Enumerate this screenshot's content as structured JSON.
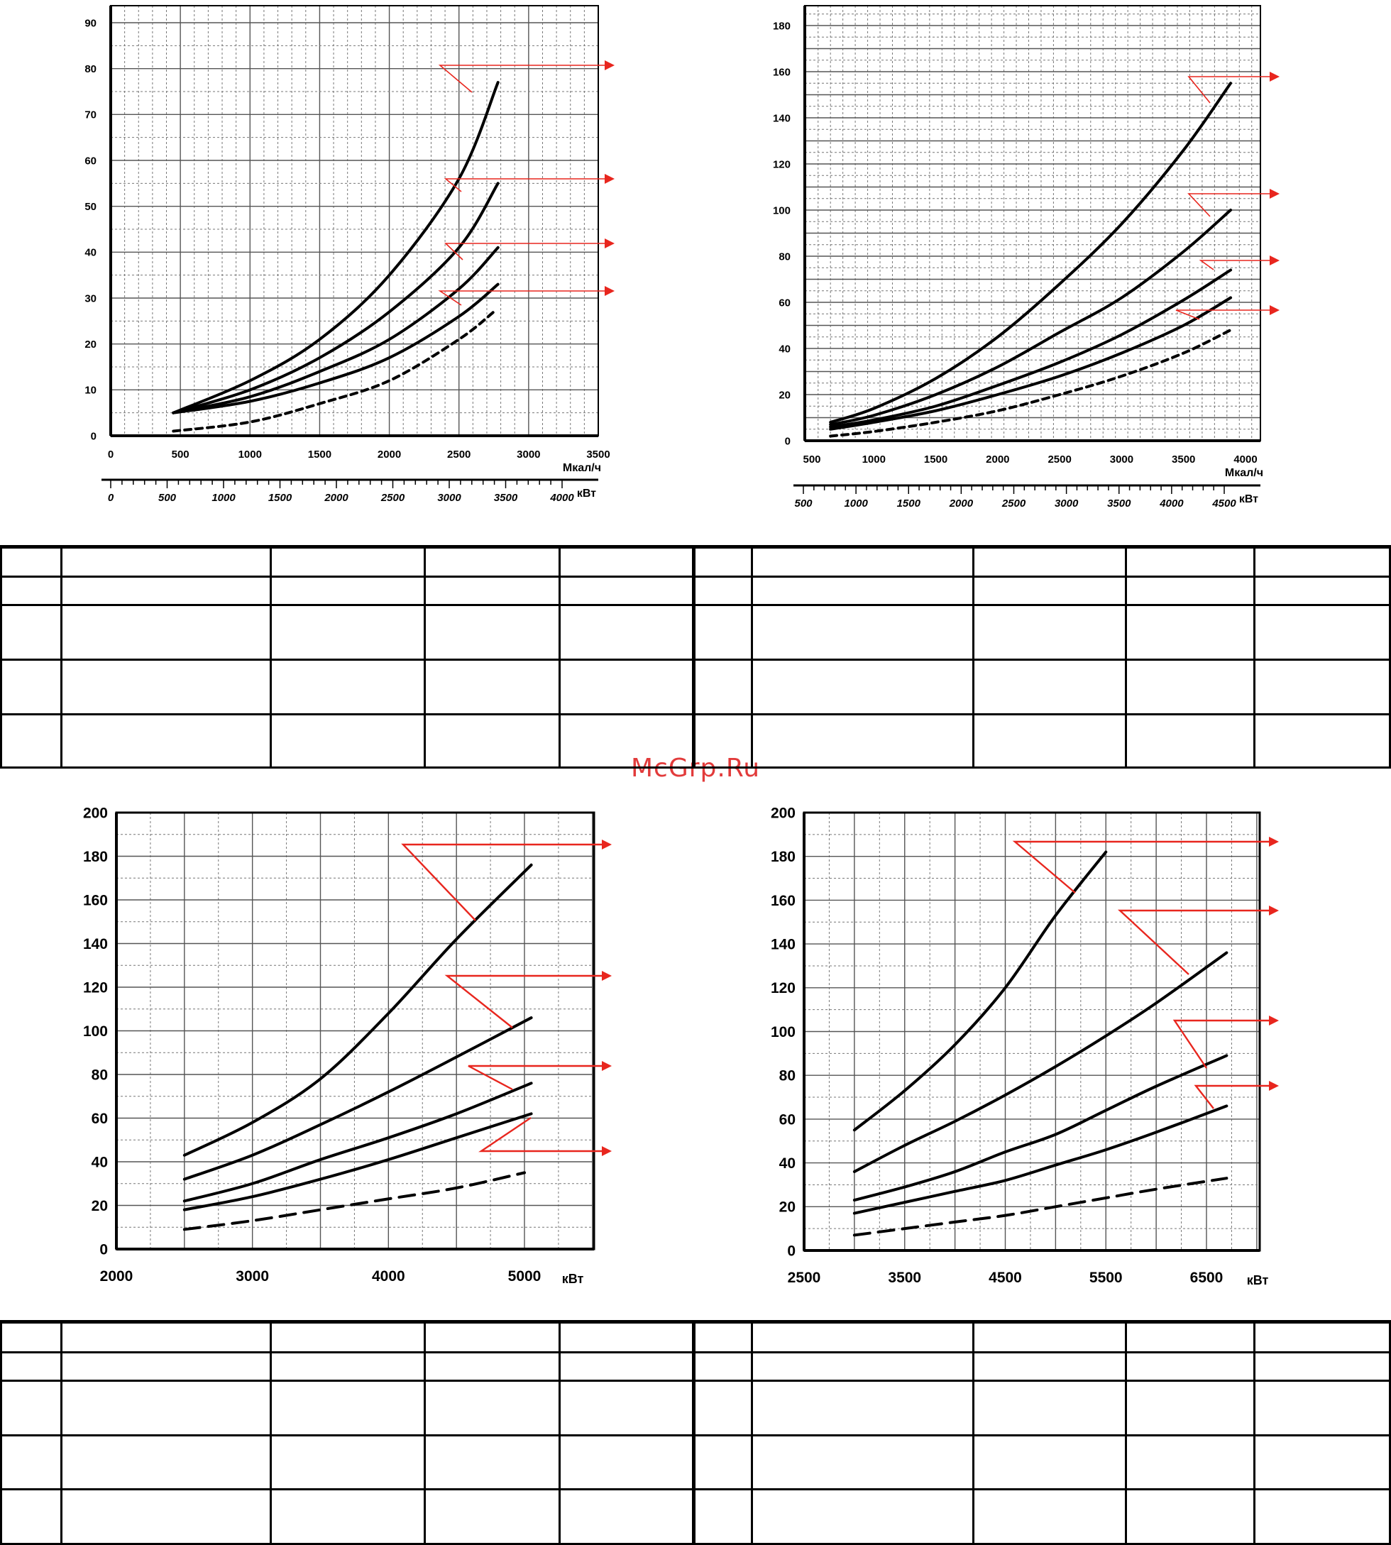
{
  "watermark": "McGrp.Ru",
  "arrow_color": "#e8261e",
  "chart_data": [
    {
      "type": "line",
      "yticks": [
        0,
        10,
        20,
        30,
        40,
        50,
        60,
        70,
        80,
        90
      ],
      "ylim": [
        0,
        95
      ],
      "x1ticks": [
        0,
        500,
        1000,
        1500,
        2000,
        2500,
        3000,
        3500
      ],
      "x1label": "Мкал/ч",
      "x1lim": [
        0,
        3700
      ],
      "x2ticks": [
        0,
        500,
        1000,
        1500,
        2000,
        2500,
        3000,
        3500,
        4000
      ],
      "x2label": "кВт",
      "grid": true,
      "series": [
        {
          "style": "solid",
          "x": [
            450,
            1000,
            1500,
            2000,
            2500,
            2780
          ],
          "y": [
            5,
            12,
            21,
            35,
            56,
            77
          ]
        },
        {
          "style": "solid",
          "x": [
            450,
            1000,
            1500,
            2000,
            2500,
            2780
          ],
          "y": [
            5,
            10,
            17,
            27,
            41,
            55
          ]
        },
        {
          "style": "solid",
          "x": [
            450,
            1000,
            1500,
            2000,
            2500,
            2780
          ],
          "y": [
            5,
            8.5,
            14,
            21,
            32,
            41
          ]
        },
        {
          "style": "solid",
          "x": [
            450,
            1000,
            1500,
            2000,
            2500,
            2780
          ],
          "y": [
            5,
            7.5,
            11.5,
            17,
            26,
            33
          ]
        },
        {
          "style": "dashed",
          "x": [
            450,
            1000,
            1500,
            2000,
            2500,
            2750
          ],
          "y": [
            1,
            3,
            7,
            12,
            21,
            27
          ]
        }
      ]
    },
    {
      "type": "line",
      "yticks": [
        0,
        20,
        40,
        60,
        80,
        100,
        120,
        140,
        160,
        180
      ],
      "ylim": [
        0,
        190
      ],
      "x1ticks": [
        500,
        1000,
        1500,
        2000,
        2500,
        3000,
        3500,
        4000
      ],
      "x1label": "Мкал/ч",
      "x1lim": [
        450,
        4200
      ],
      "x2ticks": [
        500,
        1000,
        1500,
        2000,
        2500,
        3000,
        3500,
        4000,
        4500
      ],
      "x2label": "кВт",
      "grid": true,
      "series": [
        {
          "style": "solid",
          "x": [
            650,
            1000,
            1500,
            2000,
            2500,
            3000,
            3500,
            3880
          ],
          "y": [
            8,
            14,
            27,
            45,
            68,
            94,
            126,
            155
          ]
        },
        {
          "style": "solid",
          "x": [
            650,
            1000,
            1500,
            2000,
            2500,
            3000,
            3500,
            3880
          ],
          "y": [
            7,
            11,
            20,
            32,
            47,
            62,
            82,
            100
          ]
        },
        {
          "style": "solid",
          "x": [
            650,
            1000,
            1500,
            2000,
            2500,
            3000,
            3500,
            3880
          ],
          "y": [
            6,
            9,
            15,
            24,
            34,
            46,
            61,
            74
          ]
        },
        {
          "style": "solid",
          "x": [
            650,
            1000,
            1500,
            2000,
            2500,
            3000,
            3500,
            3880
          ],
          "y": [
            5,
            8,
            13,
            20,
            28,
            38,
            50,
            62
          ]
        },
        {
          "style": "dashed",
          "x": [
            650,
            1000,
            1500,
            2000,
            2500,
            3000,
            3500,
            3880
          ],
          "y": [
            2,
            4,
            8,
            13,
            20,
            28,
            38,
            48
          ]
        }
      ]
    },
    {
      "type": "line",
      "yticks": [
        0,
        20,
        40,
        60,
        80,
        100,
        120,
        140,
        160,
        180,
        200
      ],
      "ylim": [
        0,
        200
      ],
      "xticks": [
        2000,
        3000,
        4000,
        5000
      ],
      "xlabel": "кВт",
      "xlim": [
        2000,
        5500
      ],
      "grid": true,
      "series": [
        {
          "style": "solid",
          "x": [
            2500,
            3000,
            3500,
            4000,
            4500,
            5050
          ],
          "y": [
            43,
            58,
            78,
            108,
            142,
            176
          ]
        },
        {
          "style": "solid",
          "x": [
            2500,
            3000,
            3500,
            4000,
            4500,
            5050
          ],
          "y": [
            32,
            43,
            57,
            72,
            88,
            106
          ]
        },
        {
          "style": "solid",
          "x": [
            2500,
            3000,
            3500,
            4000,
            4500,
            5050
          ],
          "y": [
            22,
            30,
            41,
            51,
            62,
            76
          ]
        },
        {
          "style": "solid",
          "x": [
            2500,
            3000,
            3500,
            4000,
            4500,
            5050
          ],
          "y": [
            18,
            24,
            32,
            41,
            51,
            62
          ]
        },
        {
          "style": "dashed",
          "x": [
            2500,
            3000,
            3500,
            4000,
            4500,
            5000
          ],
          "y": [
            9,
            13,
            18,
            23,
            28,
            35
          ]
        }
      ]
    },
    {
      "type": "line",
      "yticks": [
        0,
        20,
        40,
        60,
        80,
        100,
        120,
        140,
        160,
        180,
        200
      ],
      "ylim": [
        0,
        200
      ],
      "xticks": [
        2500,
        3500,
        4500,
        5500,
        6500
      ],
      "xlabel": "кВт",
      "xlim": [
        2500,
        7100
      ],
      "grid": true,
      "series": [
        {
          "style": "solid",
          "x": [
            3000,
            3500,
            4000,
            4500,
            5000,
            5500
          ],
          "y": [
            55,
            73,
            94,
            120,
            153,
            182
          ]
        },
        {
          "style": "solid",
          "x": [
            3000,
            3500,
            4000,
            4500,
            5000,
            5500,
            6000,
            6700
          ],
          "y": [
            36,
            48,
            59,
            71,
            84,
            98,
            113,
            136
          ]
        },
        {
          "style": "solid",
          "x": [
            3000,
            3500,
            4000,
            4500,
            5000,
            5500,
            6000,
            6700
          ],
          "y": [
            23,
            29,
            36,
            45,
            53,
            64,
            75,
            89
          ]
        },
        {
          "style": "solid",
          "x": [
            3000,
            3500,
            4000,
            4500,
            5000,
            5500,
            6000,
            6700
          ],
          "y": [
            17,
            22,
            27,
            32,
            39,
            46,
            54,
            66
          ]
        },
        {
          "style": "dashed",
          "x": [
            3000,
            3500,
            4000,
            4500,
            5000,
            5500,
            6000,
            6700
          ],
          "y": [
            7,
            10,
            13,
            16,
            20,
            24,
            28,
            33
          ]
        }
      ]
    }
  ]
}
